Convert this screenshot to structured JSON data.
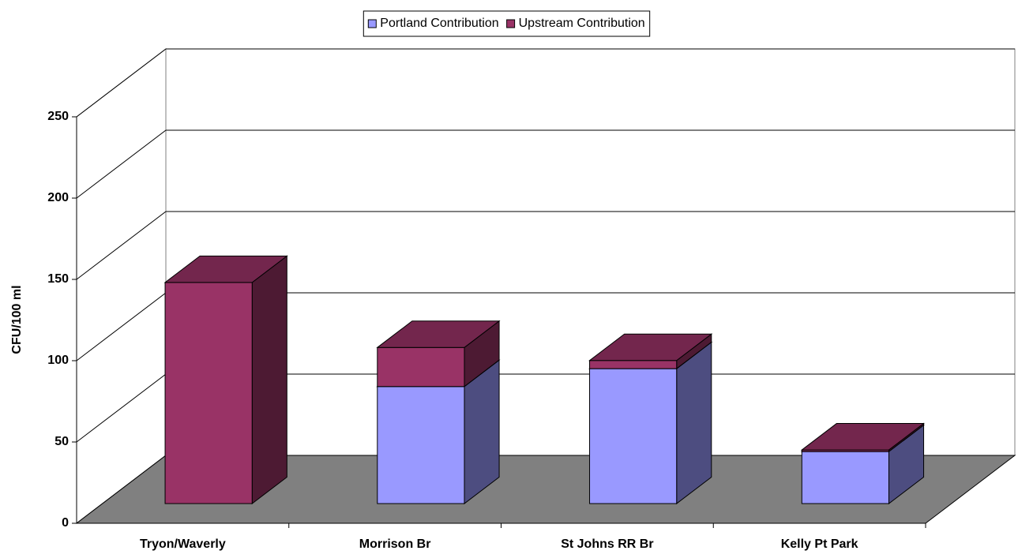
{
  "chart_data": {
    "type": "bar3d_stacked",
    "y_label": "CFU/100 ml",
    "categories": [
      "Tryon/Waverly",
      "Morrison Br",
      "St Johns RR Br",
      "Kelly Pt Park"
    ],
    "series": [
      {
        "name": "Portland Contribution",
        "color": "#9999FF",
        "side_color": "#4D4D80",
        "top_color": "#7A7ACC",
        "values": [
          0,
          72,
          83,
          32
        ]
      },
      {
        "name": "Upstream Contribution",
        "color": "#993366",
        "side_color": "#4D1A33",
        "top_color": "#73264D",
        "values": [
          136,
          24,
          5,
          1
        ]
      }
    ],
    "ylim": [
      0,
      250
    ],
    "yticks": [
      0,
      50,
      100,
      150,
      200,
      250
    ],
    "grid": true,
    "legend": "top"
  }
}
